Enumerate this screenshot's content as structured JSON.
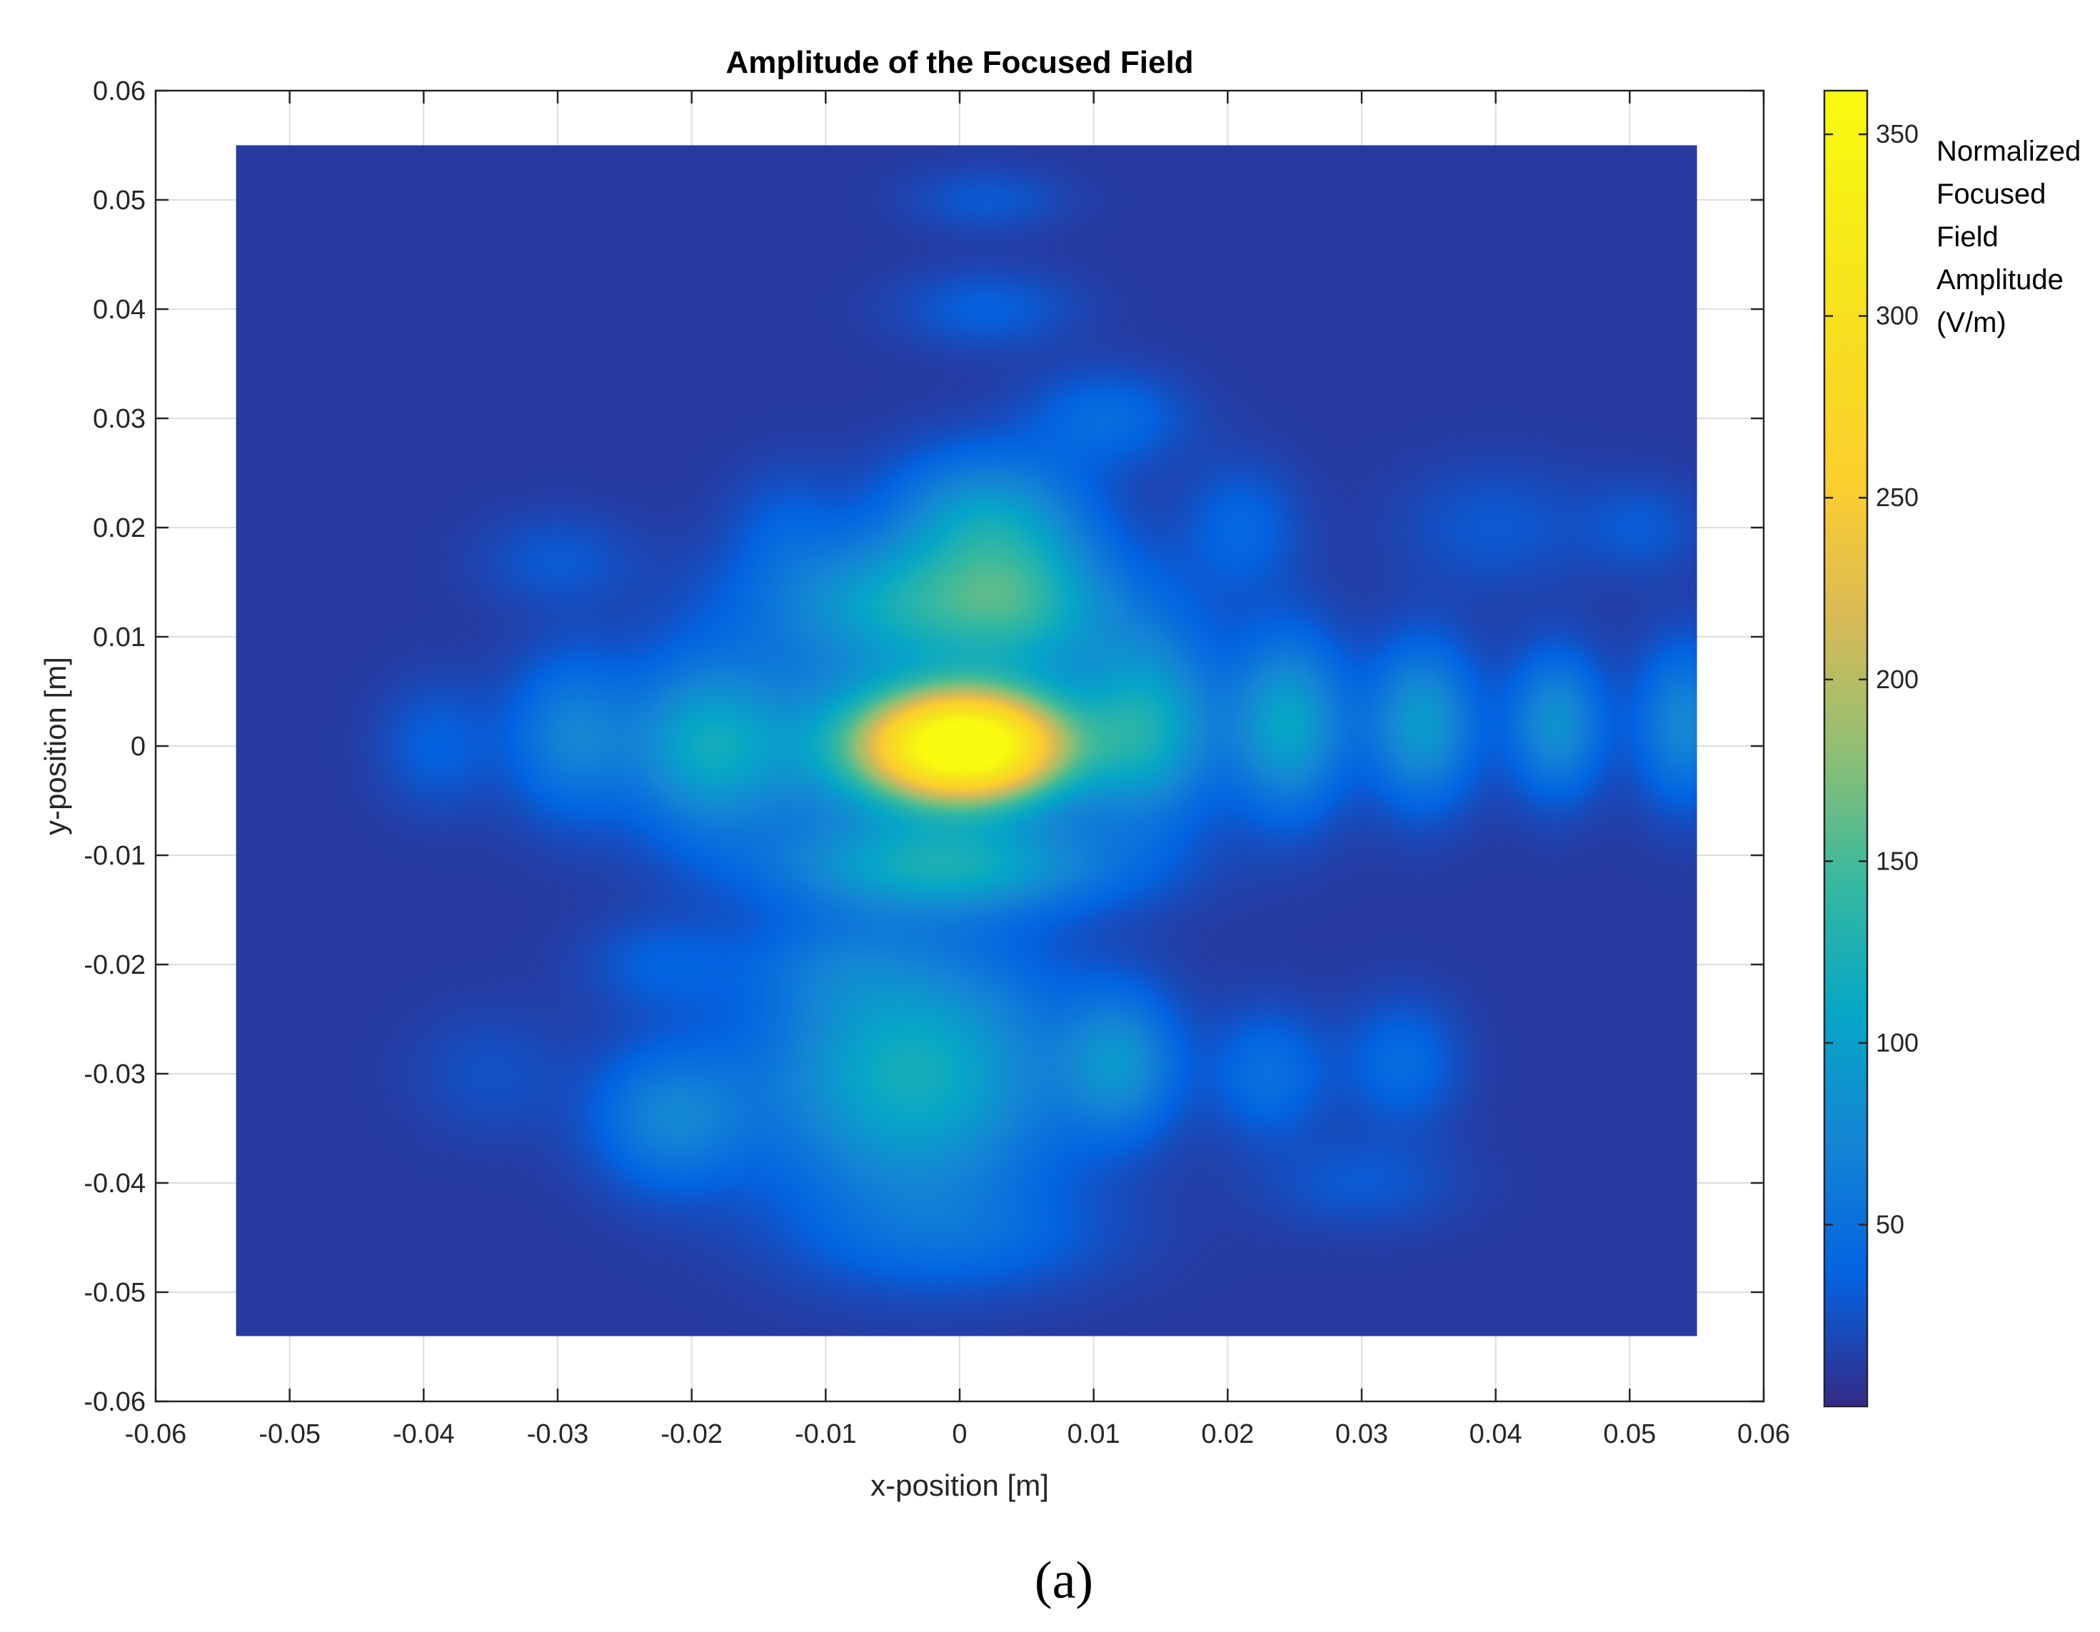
{
  "caption": "(a)",
  "chart_data": {
    "type": "heatmap",
    "title": "Amplitude of the Focused Field",
    "xlabel": "x-position [m]",
    "ylabel": "y-position [m]",
    "xlim": [
      -0.06,
      0.06
    ],
    "ylim": [
      -0.06,
      0.06
    ],
    "x_ticks": [
      "-0.06",
      "-0.05",
      "-0.04",
      "-0.03",
      "-0.02",
      "-0.01",
      "0",
      "0.01",
      "0.02",
      "0.03",
      "0.04",
      "0.05",
      "0.06"
    ],
    "y_ticks": [
      "0.06",
      "0.05",
      "0.04",
      "0.03",
      "0.02",
      "0.01",
      "0",
      "-0.01",
      "-0.02",
      "-0.03",
      "-0.04",
      "-0.05",
      "-0.06"
    ],
    "data_extent": {
      "x": [
        -0.054,
        0.055
      ],
      "y": [
        -0.054,
        0.055
      ]
    },
    "grid": true,
    "colormap": "parula",
    "colorbar": {
      "label_lines": [
        "Normalized",
        "Focused",
        "Field",
        "Amplitude",
        "(V/m)"
      ],
      "range": [
        0,
        362
      ],
      "ticks": [
        "350",
        "300",
        "250",
        "200",
        "150",
        "100",
        "50"
      ],
      "tick_values": [
        350,
        300,
        250,
        200,
        150,
        100,
        50
      ]
    },
    "peak_value": 362,
    "background_value": 10,
    "lobes": [
      {
        "x": 0.0005,
        "y": 0.0,
        "sx": 0.0052,
        "sy": 0.0035,
        "amp": 352
      },
      {
        "x": -0.0055,
        "y": 0.0,
        "sx": 0.0105,
        "sy": 0.0055,
        "amp": 70
      },
      {
        "x": -0.019,
        "y": 0.0,
        "sx": 0.0038,
        "sy": 0.0055,
        "amp": 75
      },
      {
        "x": -0.029,
        "y": 0.001,
        "sx": 0.0032,
        "sy": 0.005,
        "amp": 55
      },
      {
        "x": -0.039,
        "y": 0.0,
        "sx": 0.003,
        "sy": 0.004,
        "amp": 25
      },
      {
        "x": 0.014,
        "y": 0.002,
        "sx": 0.0035,
        "sy": 0.006,
        "amp": 95
      },
      {
        "x": 0.0245,
        "y": 0.002,
        "sx": 0.003,
        "sy": 0.0055,
        "amp": 95
      },
      {
        "x": 0.0345,
        "y": 0.002,
        "sx": 0.0028,
        "sy": 0.005,
        "amp": 85
      },
      {
        "x": 0.0445,
        "y": 0.002,
        "sx": 0.0025,
        "sy": 0.0045,
        "amp": 75
      },
      {
        "x": 0.054,
        "y": 0.002,
        "sx": 0.0025,
        "sy": 0.005,
        "amp": 65
      },
      {
        "x": -0.0015,
        "y": 0.013,
        "sx": 0.0085,
        "sy": 0.0042,
        "amp": 110
      },
      {
        "x": 0.002,
        "y": 0.021,
        "sx": 0.005,
        "sy": 0.0042,
        "amp": 80
      },
      {
        "x": 0.005,
        "y": 0.013,
        "sx": 0.004,
        "sy": 0.005,
        "amp": 40
      },
      {
        "x": -0.001,
        "y": -0.011,
        "sx": 0.0085,
        "sy": 0.003,
        "amp": 95
      },
      {
        "x": -0.0035,
        "y": -0.03,
        "sx": 0.0075,
        "sy": 0.0085,
        "amp": 110
      },
      {
        "x": 0.012,
        "y": -0.029,
        "sx": 0.003,
        "sy": 0.0045,
        "amp": 70
      },
      {
        "x": -0.0215,
        "y": -0.034,
        "sx": 0.004,
        "sy": 0.0045,
        "amp": 60
      },
      {
        "x": 0.023,
        "y": -0.03,
        "sx": 0.003,
        "sy": 0.004,
        "amp": 40
      },
      {
        "x": 0.033,
        "y": -0.029,
        "sx": 0.003,
        "sy": 0.004,
        "amp": 35
      },
      {
        "x": 0.021,
        "y": 0.02,
        "sx": 0.003,
        "sy": 0.004,
        "amp": 30
      },
      {
        "x": 0.011,
        "y": 0.03,
        "sx": 0.004,
        "sy": 0.003,
        "amp": 35
      },
      {
        "x": 0.002,
        "y": 0.04,
        "sx": 0.0045,
        "sy": 0.0025,
        "amp": 25
      },
      {
        "x": 0.002,
        "y": 0.05,
        "sx": 0.004,
        "sy": 0.002,
        "amp": 20
      },
      {
        "x": -0.013,
        "y": 0.02,
        "sx": 0.003,
        "sy": 0.004,
        "amp": 20
      },
      {
        "x": -0.03,
        "y": 0.017,
        "sx": 0.004,
        "sy": 0.003,
        "amp": 20
      },
      {
        "x": -0.022,
        "y": -0.02,
        "sx": 0.004,
        "sy": 0.003,
        "amp": 25
      },
      {
        "x": -0.01,
        "y": -0.02,
        "sx": 0.004,
        "sy": 0.003,
        "amp": 20
      },
      {
        "x": 0.0,
        "y": -0.045,
        "sx": 0.008,
        "sy": 0.0035,
        "amp": 25
      },
      {
        "x": 0.04,
        "y": 0.02,
        "sx": 0.005,
        "sy": 0.004,
        "amp": 20
      },
      {
        "x": 0.051,
        "y": 0.02,
        "sx": 0.003,
        "sy": 0.003,
        "amp": 20
      },
      {
        "x": 0.03,
        "y": -0.04,
        "sx": 0.005,
        "sy": 0.003,
        "amp": 20
      },
      {
        "x": -0.035,
        "y": -0.03,
        "sx": 0.004,
        "sy": 0.004,
        "amp": 15
      }
    ]
  }
}
